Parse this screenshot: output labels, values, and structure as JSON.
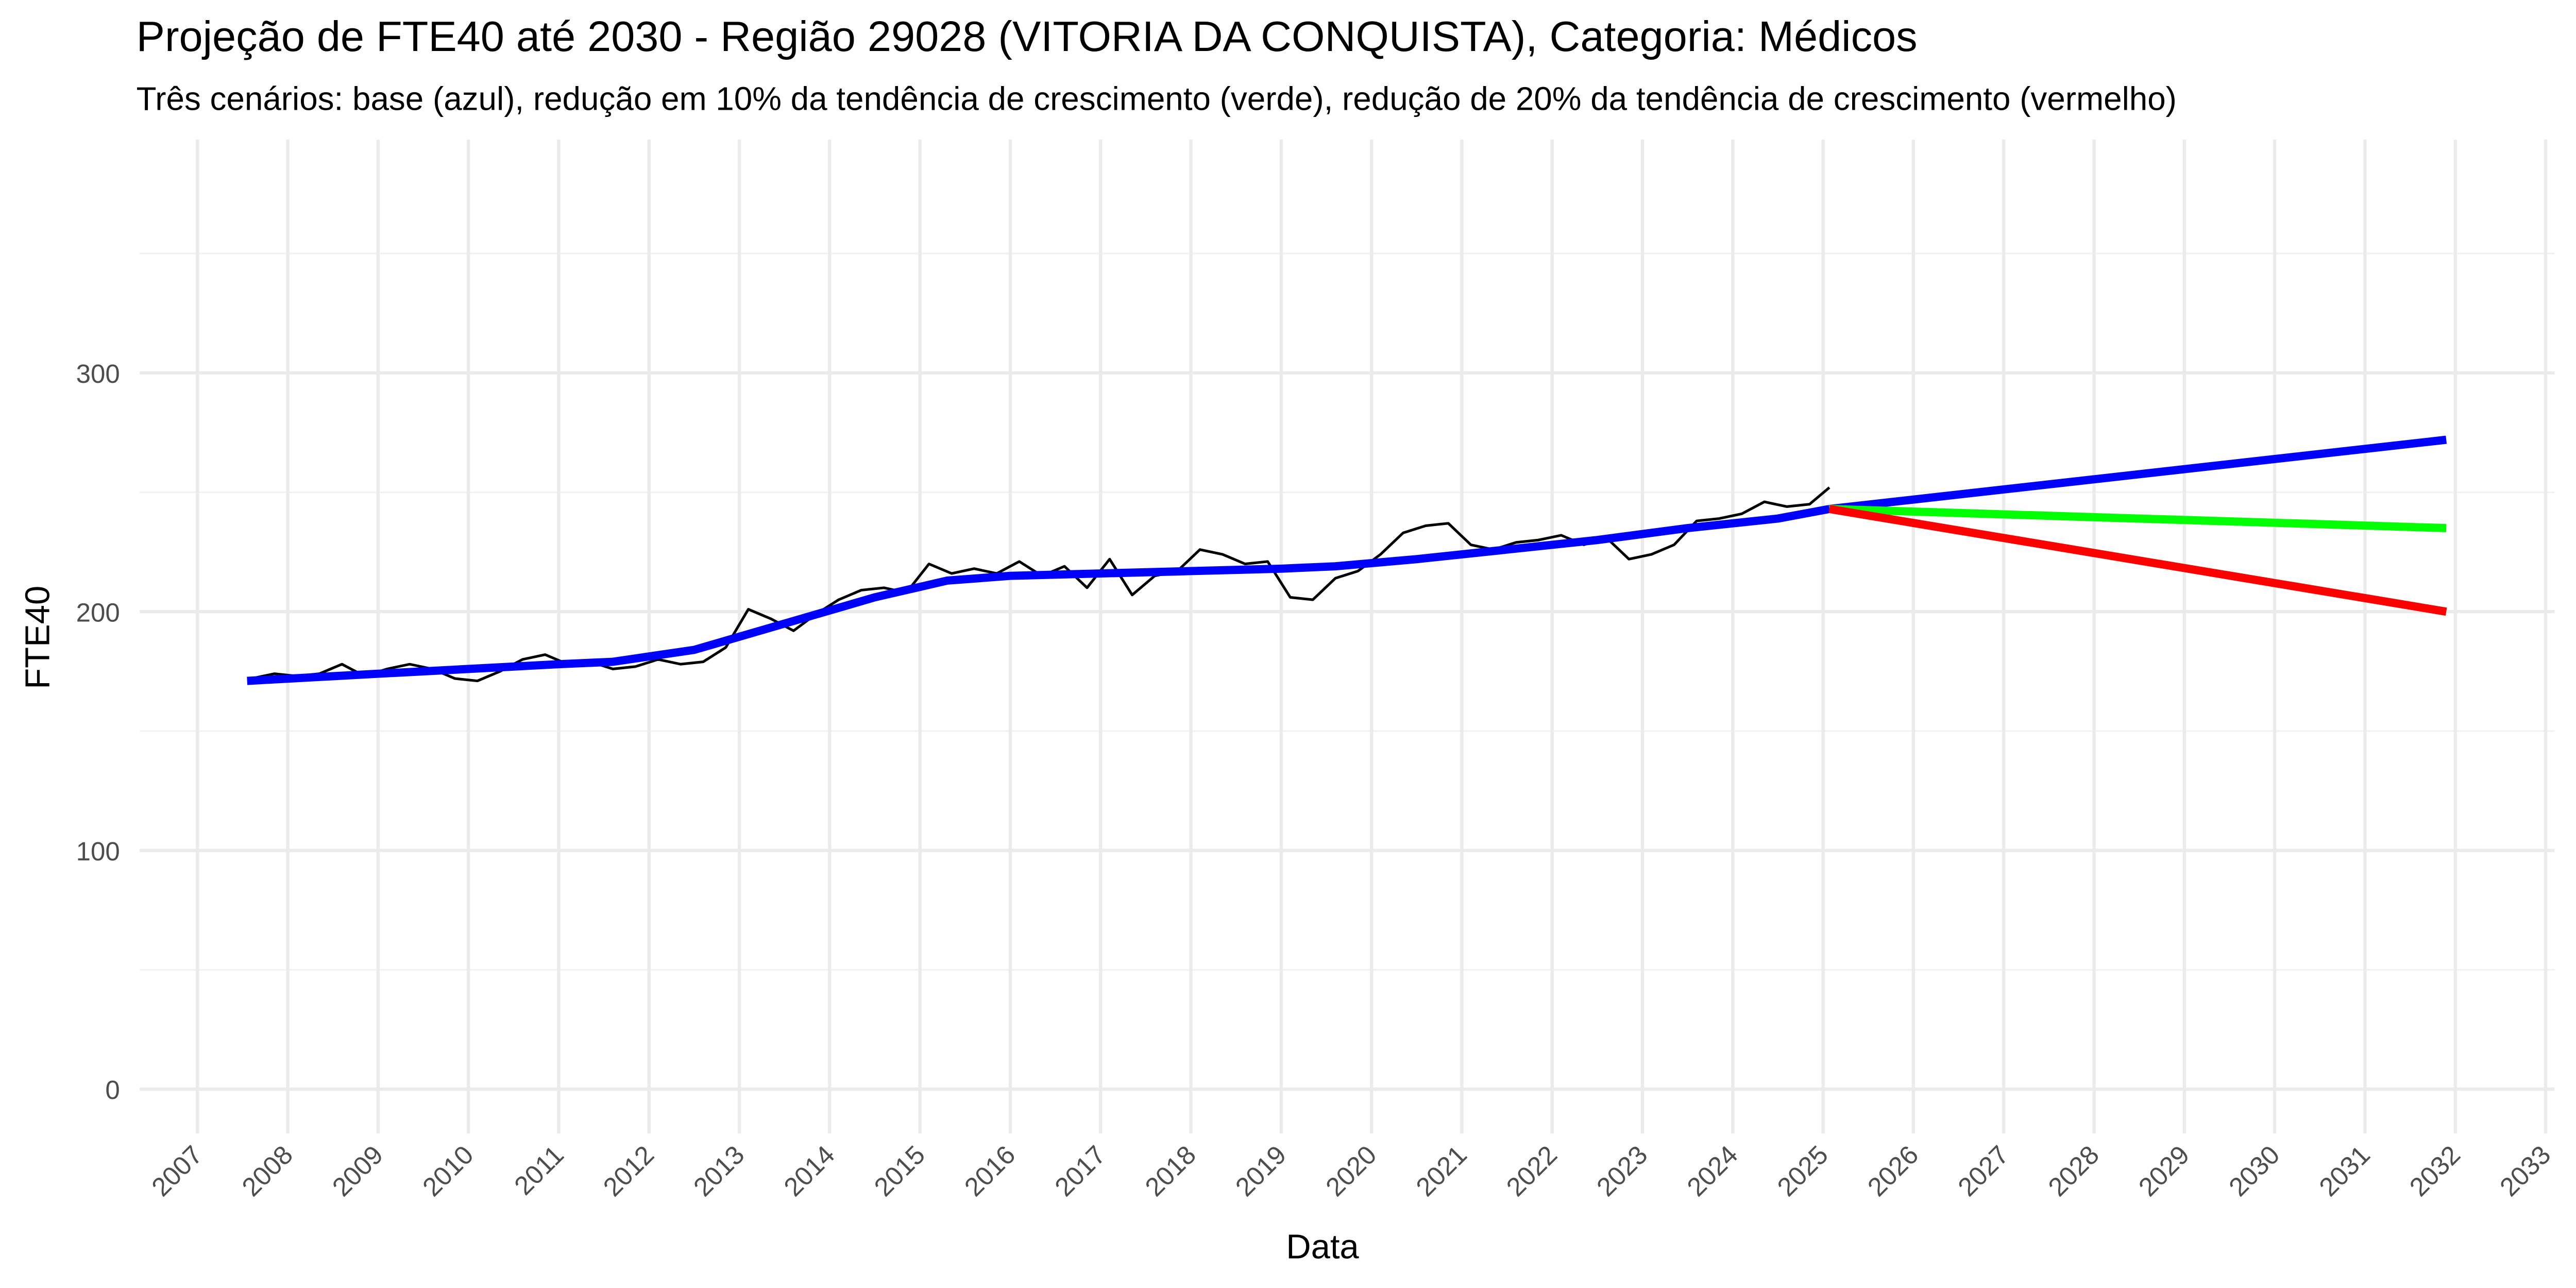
{
  "chart_data": {
    "type": "line",
    "title": "Projeção de FTE40 até 2030 - Região 29028 (VITORIA DA CONQUISTA), Categoria: Médicos",
    "subtitle": "Três cenários: base (azul), redução em 10% da tendência de crescimento (verde), redução de 20% da tendência de crescimento (vermelho)",
    "xlabel": "Data",
    "ylabel": "FTE40",
    "xlim": [
      2006.36,
      2033.1
    ],
    "ylim": [
      -18.6,
      397.7
    ],
    "xticks": [
      2007,
      2008,
      2009,
      2010,
      2011,
      2012,
      2013,
      2014,
      2015,
      2016,
      2017,
      2018,
      2019,
      2020,
      2021,
      2022,
      2023,
      2024,
      2025,
      2026,
      2027,
      2028,
      2029,
      2030,
      2031,
      2032,
      2033
    ],
    "yticks": [
      0,
      100,
      200,
      300
    ],
    "yminorticks": [
      50,
      150,
      250,
      350
    ],
    "grid": true,
    "series": [
      {
        "color": "#000000",
        "width": 1.6,
        "x": [
          2007.6,
          2007.85,
          2008.1,
          2008.35,
          2008.6,
          2008.85,
          2009.1,
          2009.35,
          2009.6,
          2009.85,
          2010.1,
          2010.35,
          2010.6,
          2010.85,
          2011.1,
          2011.35,
          2011.6,
          2011.85,
          2012.1,
          2012.35,
          2012.6,
          2012.85,
          2013.1,
          2013.35,
          2013.6,
          2013.85,
          2014.1,
          2014.35,
          2014.6,
          2014.85,
          2015.1,
          2015.35,
          2015.6,
          2015.85,
          2016.1,
          2016.35,
          2016.6,
          2016.85,
          2017.1,
          2017.35,
          2017.6,
          2017.85,
          2018.1,
          2018.35,
          2018.6,
          2018.85,
          2019.1,
          2019.35,
          2019.6,
          2019.85,
          2020.1,
          2020.35,
          2020.6,
          2020.85,
          2021.1,
          2021.35,
          2021.6,
          2021.85,
          2022.1,
          2022.35,
          2022.6,
          2022.85,
          2023.1,
          2023.35,
          2023.6,
          2023.85,
          2024.1,
          2024.35,
          2024.6,
          2024.85,
          2025.07
        ],
        "values": [
          172,
          174,
          173,
          174,
          178,
          173,
          176,
          178,
          176,
          172,
          171,
          175,
          180,
          182,
          178,
          179,
          176,
          177,
          180,
          178,
          179,
          185,
          201,
          197,
          192,
          199,
          205,
          209,
          210,
          208,
          220,
          216,
          218,
          216,
          221,
          215,
          219,
          210,
          222,
          207,
          215,
          217,
          226,
          224,
          220,
          221,
          206,
          205,
          214,
          217,
          224,
          233,
          236,
          237,
          228,
          226,
          229,
          230,
          232,
          228,
          231,
          222,
          224,
          228,
          238,
          239,
          241,
          246,
          244,
          245,
          252
        ]
      },
      {
        "color": "#0000ff",
        "width": 5,
        "x": [
          2007.55,
          2009,
          2011,
          2011.6,
          2012.5,
          2013.5,
          2014.5,
          2015.3,
          2016,
          2017,
          2018,
          2019,
          2019.6,
          2020.5,
          2021.5,
          2022.5,
          2023.5,
          2024.5,
          2025.07
        ],
        "values": [
          171,
          174,
          178,
          179,
          184,
          195,
          206,
          213,
          215,
          216,
          217,
          218,
          219,
          222,
          226,
          230,
          235,
          239,
          243
        ]
      },
      {
        "color": "#0000ff",
        "width": 5,
        "x": [
          2025.07,
          2031.9
        ],
        "values": [
          243,
          272
        ]
      },
      {
        "color": "#00ff00",
        "width": 5,
        "x": [
          2025.07,
          2031.9
        ],
        "values": [
          243,
          235
        ]
      },
      {
        "color": "#ff0000",
        "width": 5,
        "x": [
          2025.07,
          2031.9
        ],
        "values": [
          243,
          200
        ]
      }
    ]
  }
}
